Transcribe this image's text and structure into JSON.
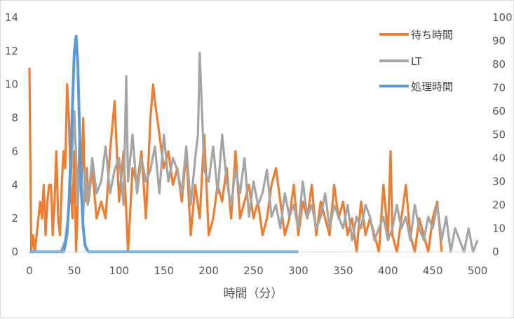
{
  "chart_data": {
    "type": "line",
    "xlabel": "時間（分）",
    "xlim": [
      0,
      500
    ],
    "x_ticks": [
      0,
      50,
      100,
      150,
      200,
      250,
      300,
      350,
      400,
      450,
      500
    ],
    "ylim_left": [
      0,
      14
    ],
    "y_ticks_left": [
      0,
      2,
      4,
      6,
      8,
      10,
      12,
      14
    ],
    "ylim_right": [
      0,
      100
    ],
    "y_ticks_right": [
      0,
      10,
      20,
      30,
      40,
      50,
      60,
      70,
      80,
      90,
      100
    ],
    "grid": false,
    "legend_position": "top-right",
    "colors": {
      "wait": "#ED7D31",
      "lt": "#A5A5A5",
      "proc": "#5B9BD5",
      "axis": "#d9d9d9",
      "text": "#595959"
    },
    "series": [
      {
        "name": "待ち時間",
        "axis": "left",
        "x": [
          0,
          2,
          4,
          6,
          8,
          10,
          12,
          14,
          16,
          18,
          20,
          22,
          24,
          26,
          28,
          30,
          32,
          34,
          36,
          38,
          40,
          42,
          44,
          46,
          48,
          50,
          52,
          54,
          56,
          58,
          60,
          62,
          64,
          66,
          68,
          70,
          75,
          80,
          85,
          90,
          95,
          100,
          105,
          110,
          115,
          120,
          125,
          130,
          135,
          138,
          140,
          145,
          150,
          155,
          160,
          165,
          170,
          175,
          180,
          185,
          190,
          195,
          200,
          205,
          210,
          215,
          220,
          225,
          230,
          235,
          240,
          245,
          250,
          255,
          260,
          265,
          270,
          275,
          280,
          285,
          290,
          295,
          300,
          305,
          310,
          315,
          320,
          325,
          330,
          335,
          340,
          345,
          350,
          355,
          360,
          365,
          370,
          375,
          380,
          385,
          390,
          395,
          400,
          403,
          405,
          410,
          415,
          420,
          425,
          430,
          435,
          440,
          445,
          450,
          455,
          460
        ],
        "values": [
          11,
          0,
          1,
          0,
          1,
          2,
          3,
          2,
          4,
          1,
          3,
          4,
          4,
          1,
          3,
          6,
          2,
          1,
          4,
          6,
          5,
          10,
          8,
          4,
          2,
          6,
          0,
          3,
          7,
          4,
          8,
          3,
          5,
          3,
          4,
          5,
          2,
          3,
          2,
          6,
          9,
          3,
          6,
          0,
          5,
          4,
          6,
          2,
          8,
          10,
          9,
          7,
          5,
          6,
          4,
          5,
          3,
          6,
          1,
          4,
          2,
          7,
          1,
          2,
          4,
          3,
          5,
          2,
          6,
          2,
          3,
          4,
          2,
          3,
          1,
          2,
          4,
          5,
          3,
          1,
          2,
          4,
          1,
          3,
          2,
          4,
          1,
          3,
          2,
          1,
          4,
          2,
          3,
          1,
          2,
          0,
          3,
          1,
          2,
          1,
          0,
          4,
          1,
          6,
          1,
          0,
          2,
          4,
          1,
          0,
          2,
          1,
          0,
          2,
          3,
          0
        ]
      },
      {
        "name": "LT",
        "axis": "right",
        "x": [
          0,
          5,
          10,
          15,
          20,
          25,
          30,
          35,
          40,
          44,
          46,
          48,
          50,
          52,
          54,
          56,
          58,
          60,
          62,
          65,
          70,
          75,
          80,
          85,
          90,
          95,
          100,
          105,
          108,
          110,
          115,
          120,
          125,
          130,
          135,
          140,
          145,
          150,
          155,
          160,
          165,
          170,
          175,
          180,
          185,
          188,
          190,
          193,
          195,
          200,
          205,
          210,
          215,
          220,
          225,
          230,
          235,
          240,
          245,
          250,
          255,
          260,
          265,
          270,
          275,
          280,
          285,
          290,
          295,
          300,
          305,
          310,
          315,
          320,
          325,
          330,
          335,
          340,
          345,
          350,
          355,
          360,
          365,
          370,
          375,
          380,
          385,
          390,
          395,
          400,
          405,
          410,
          415,
          420,
          425,
          430,
          435,
          440,
          445,
          450,
          455,
          460,
          465,
          470,
          475,
          480,
          485,
          490,
          495,
          500
        ],
        "values": [
          0,
          0,
          0,
          0,
          0,
          0,
          0,
          0,
          5,
          18,
          30,
          45,
          60,
          40,
          20,
          35,
          25,
          15,
          35,
          20,
          40,
          25,
          30,
          45,
          25,
          35,
          40,
          20,
          75,
          30,
          50,
          25,
          40,
          30,
          35,
          45,
          25,
          50,
          30,
          40,
          35,
          25,
          45,
          20,
          40,
          50,
          85,
          55,
          35,
          30,
          45,
          25,
          50,
          30,
          20,
          35,
          25,
          40,
          15,
          30,
          20,
          25,
          35,
          15,
          20,
          10,
          25,
          15,
          20,
          10,
          30,
          15,
          20,
          10,
          15,
          25,
          10,
          20,
          15,
          10,
          20,
          5,
          15,
          10,
          20,
          15,
          5,
          10,
          15,
          5,
          10,
          20,
          10,
          15,
          5,
          20,
          10,
          5,
          15,
          10,
          20,
          5,
          15,
          0,
          10,
          5,
          0,
          10,
          0,
          5
        ]
      },
      {
        "name": "処理時間",
        "axis": "right",
        "x": [
          0,
          10,
          20,
          30,
          38,
          40,
          42,
          44,
          46,
          48,
          50,
          52,
          54,
          56,
          58,
          60,
          62,
          64,
          66,
          70,
          80,
          100,
          150,
          200,
          250,
          300
        ],
        "values": [
          0,
          0,
          0,
          0,
          0,
          3,
          8,
          20,
          40,
          62,
          85,
          92,
          80,
          50,
          25,
          10,
          3,
          1,
          0,
          0,
          0,
          0,
          0,
          0,
          0,
          0
        ]
      }
    ]
  }
}
